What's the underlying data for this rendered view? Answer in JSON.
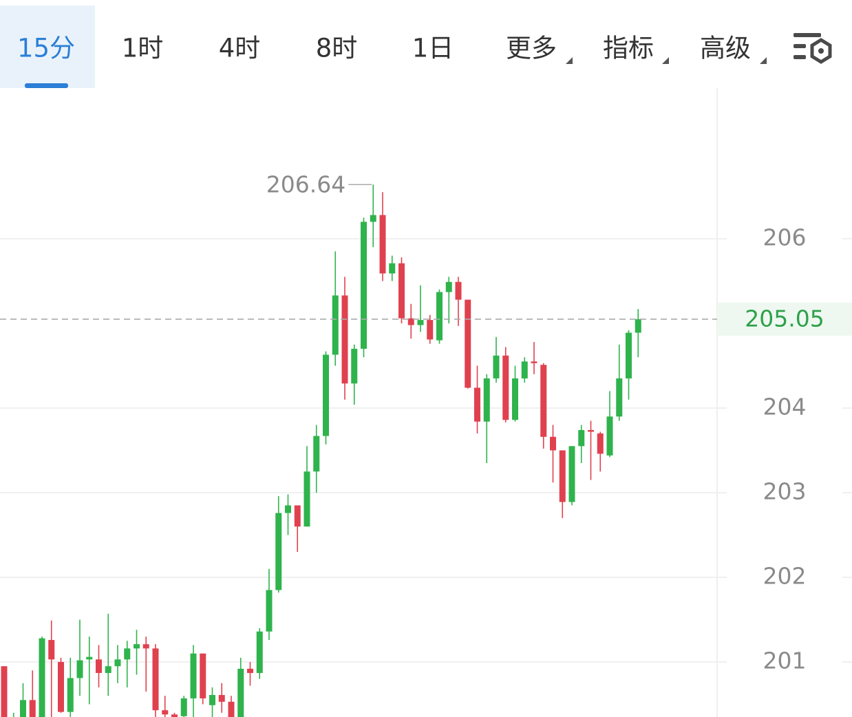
{
  "tabs": [
    "15分",
    "1时",
    "4时",
    "8时",
    "1日",
    "更多",
    "指标",
    "高级"
  ],
  "selected_tab": 0,
  "chart_data": {
    "type": "candlestick",
    "ylim": [
      200.35,
      207.78
    ],
    "yticks": [
      201,
      202,
      203,
      204,
      206
    ],
    "grid": true,
    "up_color": "#2fb34c",
    "down_color": "#e0414f",
    "max_label": 206.64,
    "last_price": 205.05,
    "open": [
      200.95,
      200.2,
      200.2,
      200.55,
      200.35,
      201.26,
      201.0,
      200.41,
      200.81,
      201.03,
      201.03,
      200.87,
      200.95,
      201.03,
      201.16,
      201.21,
      201.16,
      200.43,
      200.38,
      200.36,
      200.57,
      201.1,
      200.49,
      200.61,
      200.53,
      200.35,
      200.92,
      200.87,
      201.36,
      201.85,
      202.76,
      202.85,
      202.6,
      203.25,
      203.67,
      204.63,
      205.33,
      204.29,
      204.7,
      206.2,
      206.28,
      205.59,
      205.71,
      205.06,
      204.98,
      205.04,
      204.8,
      205.37,
      205.49,
      205.28,
      204.24,
      203.84,
      204.35,
      204.62,
      203.86,
      204.35,
      204.55,
      204.51,
      203.66,
      203.5,
      202.89,
      203.55,
      203.74,
      203.7,
      203.44,
      203.9,
      204.35,
      204.89
    ],
    "high": [
      200.95,
      200.4,
      200.75,
      200.9,
      201.3,
      201.49,
      201.05,
      201.05,
      201.5,
      201.3,
      201.2,
      201.57,
      201.2,
      201.25,
      201.38,
      201.3,
      201.21,
      200.6,
      200.4,
      200.6,
      201.2,
      201.1,
      200.7,
      200.75,
      200.6,
      201.05,
      201.0,
      201.4,
      202.1,
      202.96,
      202.98,
      202.85,
      203.55,
      203.8,
      204.67,
      205.85,
      205.55,
      204.75,
      206.25,
      206.64,
      206.55,
      205.8,
      205.78,
      205.23,
      205.45,
      205.1,
      205.4,
      205.55,
      205.55,
      205.28,
      204.5,
      204.4,
      204.84,
      204.72,
      204.5,
      204.6,
      204.78,
      204.53,
      203.8,
      203.5,
      203.55,
      203.8,
      203.85,
      203.72,
      204.2,
      204.75,
      204.92,
      205.17
    ],
    "low": [
      200.2,
      200.1,
      200.2,
      200.3,
      200.3,
      200.35,
      200.4,
      200.35,
      200.6,
      200.5,
      200.7,
      200.6,
      200.75,
      200.7,
      200.85,
      200.65,
      200.35,
      200.3,
      200.3,
      200.3,
      200.35,
      200.5,
      200.3,
      200.4,
      200.3,
      200.3,
      200.72,
      200.8,
      201.26,
      201.82,
      202.5,
      202.3,
      202.6,
      203.0,
      203.57,
      204.5,
      204.1,
      204.04,
      204.6,
      205.9,
      205.5,
      205.5,
      205.0,
      204.82,
      204.9,
      204.76,
      204.76,
      205.0,
      204.97,
      204.23,
      203.7,
      203.35,
      204.3,
      203.83,
      203.84,
      204.3,
      204.4,
      203.52,
      203.12,
      202.7,
      202.85,
      203.35,
      203.15,
      203.25,
      203.42,
      203.85,
      204.1,
      204.6
    ],
    "close": [
      200.2,
      200.3,
      200.55,
      200.35,
      201.28,
      201.03,
      200.41,
      200.81,
      201.02,
      201.06,
      200.87,
      200.95,
      201.03,
      201.16,
      201.21,
      201.16,
      200.43,
      200.38,
      200.33,
      200.57,
      201.1,
      200.57,
      200.61,
      200.53,
      200.35,
      200.92,
      200.87,
      201.36,
      201.85,
      202.76,
      202.85,
      202.6,
      203.25,
      203.67,
      204.63,
      205.33,
      204.29,
      204.7,
      206.2,
      206.28,
      205.59,
      205.71,
      205.06,
      204.98,
      205.04,
      204.81,
      205.37,
      205.49,
      205.28,
      204.24,
      203.84,
      204.35,
      204.62,
      203.86,
      204.35,
      204.55,
      204.53,
      203.66,
      203.5,
      202.89,
      203.55,
      203.74,
      203.72,
      203.46,
      203.9,
      204.35,
      204.89,
      205.05
    ]
  }
}
